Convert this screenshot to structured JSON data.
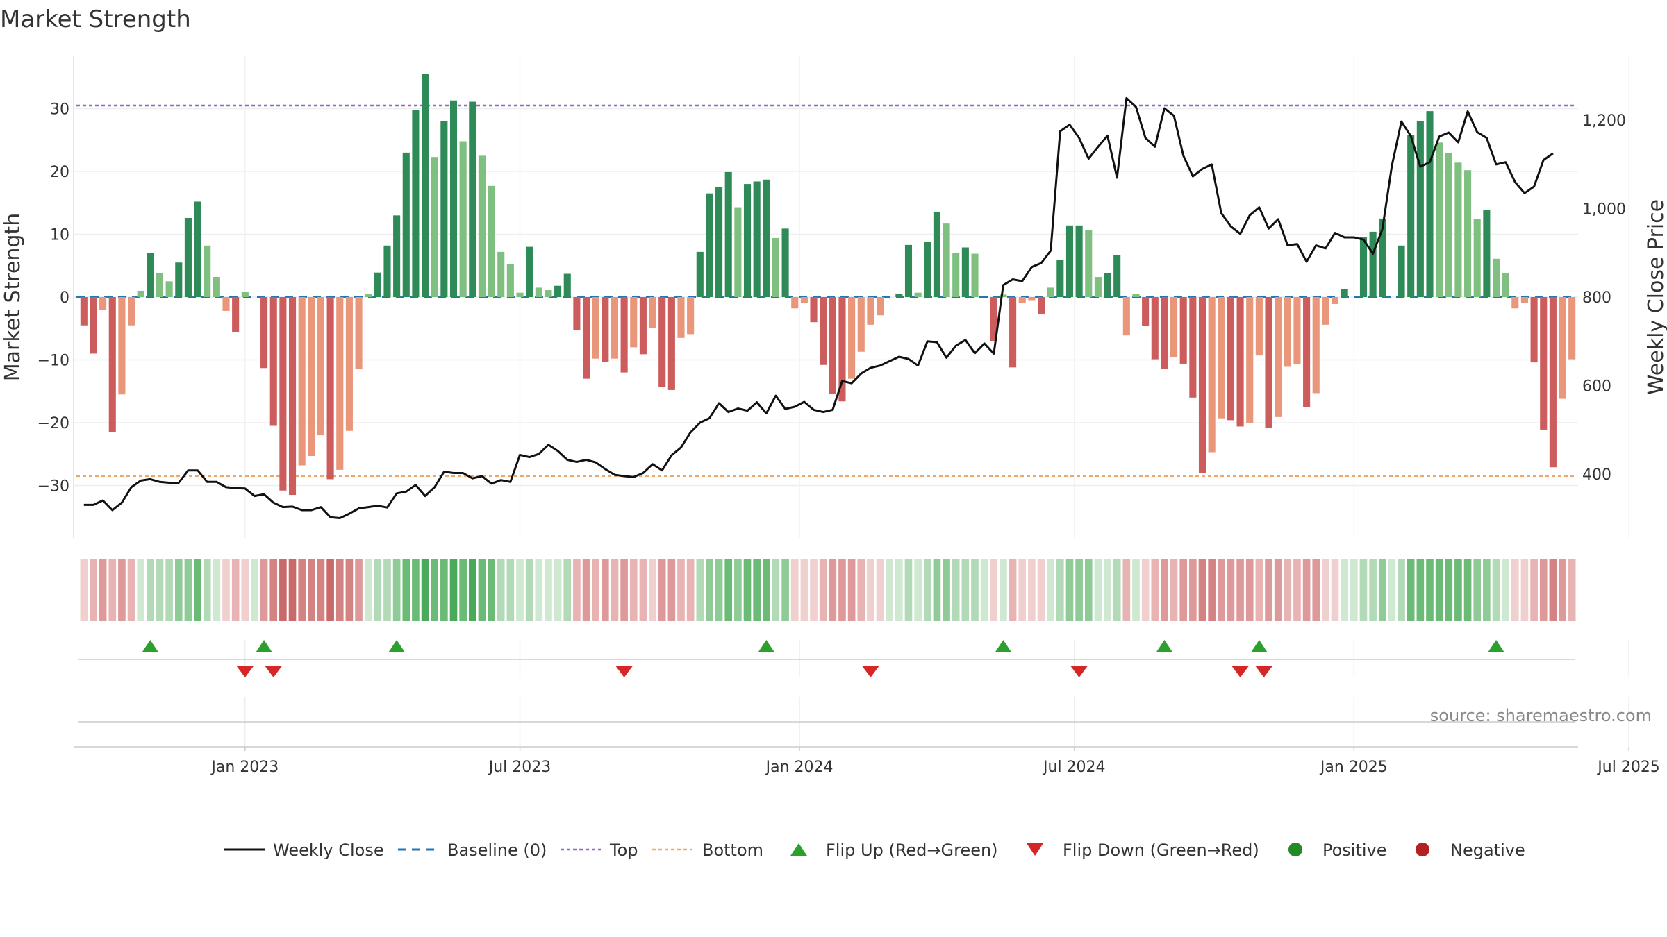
{
  "title": "Market Strength",
  "source": "source: sharemaestro.com",
  "colors": {
    "green_dark": "#2e8b57",
    "green_light": "#7fbf7f",
    "red_dark": "#cd5c5c",
    "red_light": "#e9967a",
    "top_line": "#9467bd",
    "bottom_line": "#f0a868",
    "baseline": "#1f77b4",
    "price_line": "#111111",
    "flip_up": "#2ca02c",
    "flip_down": "#d62728",
    "positive": "#228b22",
    "negative": "#b22222",
    "grid": "#eeeeee"
  },
  "chart_data": {
    "type": "bar",
    "title": "Market Strength",
    "ylabel": "Market Strength",
    "y2label": "Weekly Close Price",
    "ylim": [
      -38,
      38
    ],
    "y2lim": [
      240,
      1330
    ],
    "yticks": [
      30,
      20,
      10,
      0,
      -10,
      -20,
      -30
    ],
    "ytick_labels": [
      "30",
      "20",
      "10",
      "0",
      "−10",
      "−20",
      "−30"
    ],
    "y2ticks": [
      1200,
      1000,
      800,
      600,
      400
    ],
    "y2tick_labels": [
      "1,200",
      "1,000",
      "800",
      "600",
      "400"
    ],
    "top_level": 30.5,
    "bottom_level": -28.5,
    "week_start": 0,
    "week_end": 175,
    "xticks": [
      17,
      46,
      75.5,
      104.5,
      134,
      163
    ],
    "xtick_labels": [
      "Jan 2023",
      "Jul 2023",
      "Jan 2024",
      "Jul 2024",
      "Jan 2025",
      "Jul 2025"
    ],
    "strength": [
      -4.5,
      -9,
      -2,
      -21.5,
      -15.5,
      -4.5,
      1,
      7,
      3.8,
      2.5,
      5.5,
      12.6,
      15.2,
      8.2,
      3.2,
      -2.2,
      -5.6,
      0.8,
      0,
      -11.3,
      -20.5,
      -30.8,
      -31.5,
      -26.8,
      -25.3,
      -22,
      -29,
      -27.5,
      -21.3,
      -11.5,
      0.5,
      3.9,
      8.2,
      13,
      23,
      29.8,
      35.5,
      22.3,
      28,
      31.3,
      24.8,
      31.1,
      22.5,
      17.7,
      7.2,
      5.3,
      0.7,
      8,
      1.5,
      1.1,
      1.8,
      3.7,
      -5.2,
      -13,
      -9.8,
      -10.3,
      -9.8,
      -12,
      -8,
      -9.1,
      -4.9,
      -14.3,
      -14.8,
      -6.5,
      -5.9,
      7.2,
      16.5,
      17.5,
      19.9,
      14.3,
      18,
      18.4,
      18.7,
      9.4,
      10.9,
      -1.8,
      -1,
      -4,
      -10.8,
      -15.4,
      -16.6,
      -13,
      -8.7,
      -4.4,
      -2.9,
      0,
      0.5,
      8.3,
      0.7,
      8.8,
      13.6,
      11.7,
      7,
      7.9,
      6.9,
      0,
      -7,
      0.4,
      -11.2,
      -1,
      -0.5,
      -2.7,
      1.5,
      5.9,
      11.4,
      11.4,
      10.7,
      3.2,
      3.8,
      6.7,
      -6.1,
      0.5,
      -4.6,
      -9.9,
      -11.4,
      -9.6,
      -10.6,
      -16,
      -28,
      -24.7,
      -19.3,
      -19.6,
      -20.6,
      -20.1,
      -9.3,
      -20.8,
      -19.1,
      -11.1,
      -10.7,
      -17.5,
      -15.3,
      -4.4,
      -1.1,
      1.3,
      0,
      9.5,
      10.4,
      12.5,
      0,
      8.2,
      25.8,
      28,
      29.6,
      24.6,
      22.9,
      21.4,
      20.2,
      12.4,
      13.9,
      6.1,
      3.8,
      -1.8,
      -0.9,
      -10.4,
      -21.1,
      -27.1,
      -16.2,
      -9.9
    ],
    "weekly_close": [
      330,
      330,
      340,
      318,
      335,
      370,
      385,
      388,
      382,
      380,
      380,
      408,
      408,
      382,
      382,
      370,
      368,
      367,
      350,
      354,
      335,
      325,
      326,
      318,
      318,
      325,
      302,
      300,
      310,
      322,
      325,
      328,
      324,
      356,
      360,
      375,
      350,
      370,
      405,
      402,
      402,
      390,
      395,
      378,
      386,
      382,
      443,
      438,
      445,
      466,
      452,
      432,
      427,
      432,
      426,
      411,
      398,
      395,
      393,
      402,
      422,
      408,
      442,
      460,
      494,
      516,
      526,
      560,
      540,
      548,
      543,
      562,
      537,
      577,
      547,
      552,
      563,
      545,
      540,
      545,
      610,
      605,
      627,
      640,
      645,
      655,
      665,
      660,
      645,
      700,
      698,
      663,
      690,
      703,
      673,
      695,
      672,
      827,
      840,
      836,
      868,
      877,
      905,
      1175,
      1190,
      1160,
      1113,
      1140,
      1165,
      1070,
      1250,
      1230,
      1160,
      1140,
      1227,
      1210,
      1120,
      1073,
      1090,
      1100,
      990,
      960,
      943,
      985,
      1003,
      955,
      976,
      917,
      920,
      880,
      917,
      910,
      945,
      935,
      935,
      930,
      898,
      954,
      1097,
      1197,
      1164,
      1095,
      1105,
      1163,
      1172,
      1150,
      1220,
      1173,
      1160,
      1100,
      1105,
      1060,
      1035,
      1050,
      1110,
      1125
    ],
    "strip_levels": [
      -1,
      -2,
      -3,
      -2,
      -3,
      -2,
      1,
      2,
      2,
      2,
      3,
      3,
      4,
      2,
      1,
      -1,
      -2,
      -1,
      1,
      -3,
      -4,
      -5,
      -5,
      -4,
      -4,
      -4,
      -5,
      -4,
      -4,
      -3,
      1,
      2,
      2,
      3,
      4,
      4,
      5,
      4,
      4,
      5,
      4,
      5,
      4,
      4,
      2,
      2,
      1,
      2,
      1,
      1,
      1,
      2,
      -2,
      -3,
      -2,
      -3,
      -2,
      -3,
      -2,
      -2,
      -1,
      -3,
      -3,
      -2,
      -2,
      2,
      3,
      3,
      4,
      3,
      4,
      4,
      4,
      2,
      3,
      -1,
      -1,
      -1,
      -2,
      -3,
      -3,
      -3,
      -2,
      -1,
      -1,
      1,
      1,
      2,
      1,
      2,
      3,
      3,
      2,
      2,
      2,
      1,
      -1,
      1,
      -2,
      -1,
      -1,
      -1,
      1,
      2,
      3,
      3,
      3,
      1,
      1,
      2,
      -2,
      1,
      -1,
      -2,
      -3,
      -2,
      -3,
      -3,
      -4,
      -4,
      -3,
      -3,
      -3,
      -3,
      -2,
      -3,
      -3,
      -2,
      -2,
      -3,
      -3,
      -1,
      -1,
      1,
      1,
      2,
      2,
      3,
      1,
      2,
      4,
      4,
      4,
      4,
      4,
      4,
      4,
      3,
      3,
      2,
      1,
      -1,
      -1,
      -2,
      -3,
      -4,
      -3,
      -2
    ],
    "flips_up": [
      7,
      19,
      33,
      72,
      97,
      114,
      124,
      149
    ],
    "flips_down": [
      17,
      20,
      57,
      83,
      105,
      122,
      124.5
    ],
    "legend": {
      "weekly_close": "Weekly Close",
      "baseline": "Baseline (0)",
      "top": "Top",
      "bottom": "Bottom",
      "flip_up": "Flip Up (Red→Green)",
      "flip_down": "Flip Down (Green→Red)",
      "positive": "Positive",
      "negative": "Negative"
    }
  }
}
